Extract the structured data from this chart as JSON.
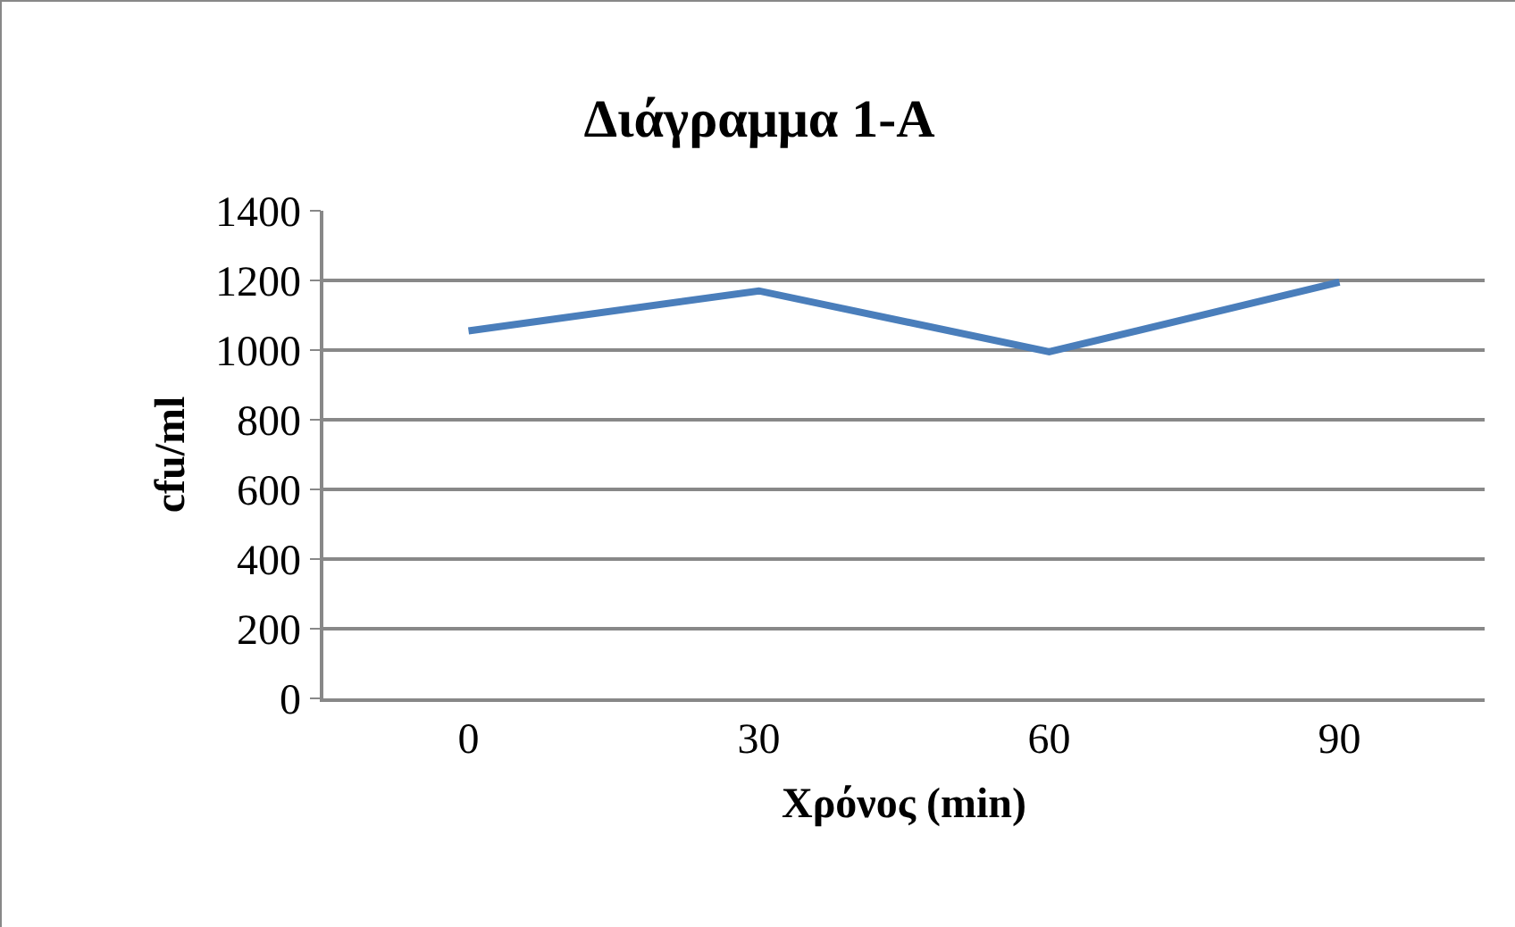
{
  "chart_data": {
    "type": "line",
    "title": "Διάγραμμα 1-A",
    "xlabel": "Χρόνος (min)",
    "ylabel": "cfu/ml",
    "categories": [
      "0",
      "30",
      "60",
      "90"
    ],
    "series": [
      {
        "color": "#4a7ebb",
        "values": [
          1055,
          1170,
          995,
          1195
        ]
      }
    ],
    "ylim": [
      0,
      1400
    ],
    "yticks": [
      0,
      200,
      400,
      600,
      800,
      1000,
      1200,
      1400
    ],
    "grid": "y",
    "marker": "none",
    "line_style": "solid"
  }
}
